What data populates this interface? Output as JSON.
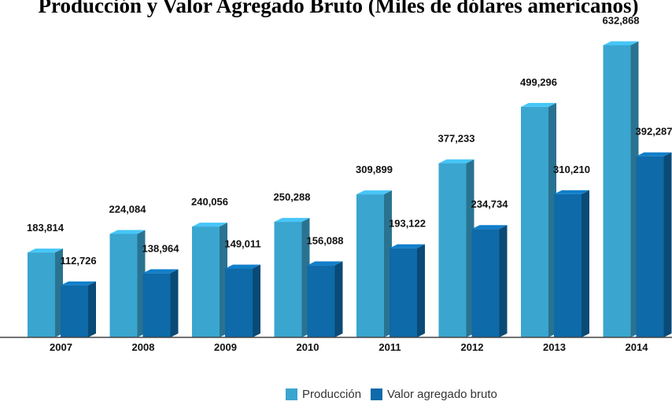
{
  "chart_data": {
    "type": "bar",
    "title": "Producción y Valor Agregado Bruto (Miles de dólares americanos)",
    "categories": [
      "2007",
      "2008",
      "2009",
      "2010",
      "2011",
      "2012",
      "2013",
      "2014"
    ],
    "series": [
      {
        "name": "Producción",
        "color": "#3aa5cf",
        "values": [
          183814,
          224084,
          240056,
          250288,
          309899,
          377233,
          499296,
          632868
        ],
        "labels": [
          "183,814",
          "224,084",
          "240,056",
          "250,288",
          "309,899",
          "377,233",
          "499,296",
          "632,868"
        ]
      },
      {
        "name": "Valor agregado bruto",
        "color": "#0e6aa8",
        "values": [
          112726,
          138964,
          149011,
          156088,
          193122,
          234734,
          310210,
          392287
        ],
        "labels": [
          "112,726",
          "138,964",
          "149,011",
          "156,088",
          "193,122",
          "234,734",
          "310,210",
          "392,287"
        ]
      }
    ],
    "legend_position": "bottom-center",
    "grid": false
  }
}
